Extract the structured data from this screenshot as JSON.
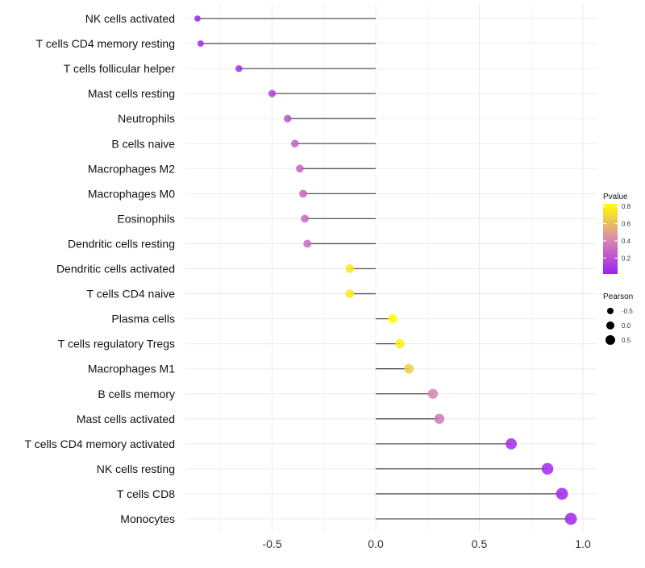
{
  "chart_data": {
    "type": "lollipop",
    "title": "",
    "xlabel": "",
    "ylabel": "",
    "xlim": [
      -0.92,
      1.0
    ],
    "x_ticks": [
      -0.5,
      0.0,
      0.5,
      1.0
    ],
    "x_tick_labels": [
      "-0.5",
      "0.0",
      "0.5",
      "1.0"
    ],
    "grid": true,
    "categories": [
      "NK cells activated",
      "T cells CD4 memory resting",
      "T cells follicular helper",
      "Mast cells resting",
      "Neutrophils",
      "B cells naive",
      "Macrophages M2",
      "Macrophages M0",
      "Eosinophils",
      "Dendritic cells resting",
      "Dendritic cells activated",
      "T cells CD4 naive",
      "Plasma cells",
      "T cells regulatory  Tregs ",
      "Macrophages M1",
      "B cells memory",
      "Mast cells activated",
      "T cells CD4 memory activated",
      "NK cells resting",
      "T cells CD8",
      "Monocytes"
    ],
    "pearson": [
      -0.86,
      -0.845,
      -0.66,
      -0.5,
      -0.425,
      -0.39,
      -0.366,
      -0.35,
      -0.342,
      -0.33,
      -0.125,
      -0.125,
      0.082,
      0.117,
      0.16,
      0.276,
      0.307,
      0.654,
      0.829,
      0.899,
      0.942
    ],
    "pvalue": [
      0.02,
      0.03,
      0.05,
      0.12,
      0.2,
      0.25,
      0.27,
      0.28,
      0.29,
      0.3,
      0.76,
      0.76,
      0.83,
      0.78,
      0.65,
      0.4,
      0.35,
      0.05,
      0.04,
      0.03,
      0.03
    ],
    "legend_color": {
      "title": "Pvalue",
      "ticks": [
        "0.8",
        "0.6",
        "0.4",
        "0.2"
      ],
      "tick_values": [
        0.8,
        0.6,
        0.4,
        0.2
      ],
      "range": [
        0.015,
        0.83
      ],
      "low": "#A020F0",
      "mid": "#D98AAE",
      "high": "#FFFF00"
    },
    "legend_size": {
      "title": "Pearson",
      "labels": [
        "-0.5",
        "0.0",
        "0.5"
      ],
      "values": [
        -0.5,
        0.0,
        0.5
      ]
    },
    "legend_placement": "right"
  }
}
